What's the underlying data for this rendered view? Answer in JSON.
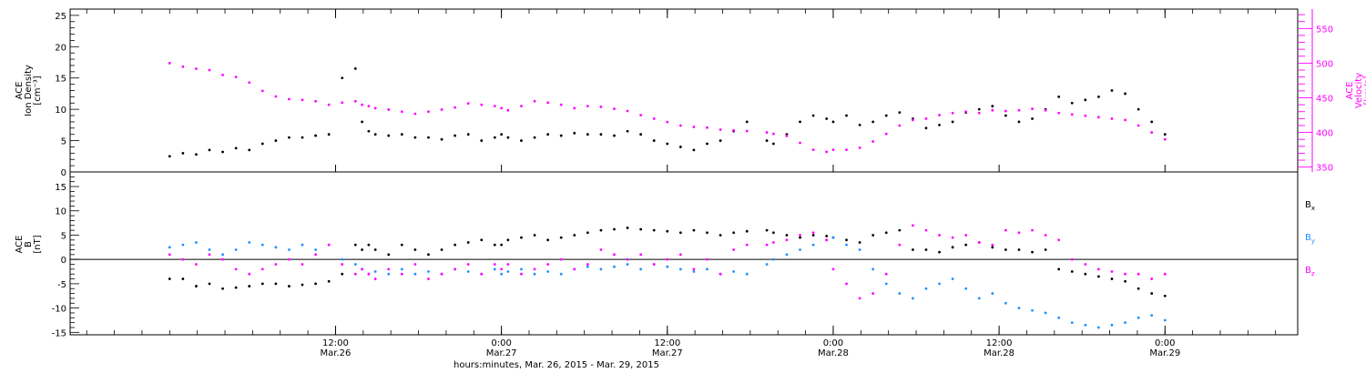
{
  "chart_data": [
    {
      "type": "scatter",
      "panel": "plasma",
      "ylabel_left": [
        "ACE",
        "Ion Density",
        "[cm⁻³]"
      ],
      "ylabel_right": [
        "ACE",
        "Velocity",
        "[km/s]"
      ],
      "left_axis": {
        "ylim": [
          0,
          26
        ],
        "ticks": [
          0,
          5,
          10,
          15,
          20,
          25
        ]
      },
      "right_axis": {
        "ylim": [
          343,
          578
        ],
        "ticks": [
          350,
          400,
          450,
          500,
          550
        ],
        "color": "#ff00ff"
      },
      "series": [
        {
          "name": "",
          "axis": "left",
          "color": "#000000",
          "x": [
            0.0,
            0.04,
            0.08,
            0.12,
            0.16,
            0.2,
            0.24,
            0.28,
            0.32,
            0.36,
            0.4,
            0.44,
            0.48,
            0.52,
            0.56,
            0.58,
            0.6,
            0.62,
            0.66,
            0.7,
            0.74,
            0.78,
            0.82,
            0.86,
            0.9,
            0.94,
            0.98,
            1.0,
            1.02,
            1.06,
            1.1,
            1.14,
            1.18,
            1.22,
            1.26,
            1.3,
            1.34,
            1.38,
            1.42,
            1.46,
            1.5,
            1.54,
            1.58,
            1.62,
            1.66,
            1.7,
            1.74,
            1.8,
            1.82,
            1.86,
            1.9,
            1.94,
            1.98,
            2.0,
            2.04,
            2.08,
            2.12,
            2.16,
            2.2,
            2.24,
            2.28,
            2.32,
            2.36,
            2.4,
            2.44,
            2.48,
            2.52,
            2.56,
            2.6,
            2.64,
            2.68,
            2.72,
            2.76,
            2.8,
            2.84,
            2.88,
            2.92,
            2.96,
            3.0
          ],
          "y": [
            2.5,
            3.0,
            2.8,
            3.5,
            3.2,
            3.8,
            3.5,
            4.5,
            5.0,
            5.5,
            5.5,
            5.8,
            6.0,
            15.0,
            16.5,
            8.0,
            6.5,
            6.0,
            5.8,
            6.0,
            5.5,
            5.5,
            5.2,
            5.8,
            6.0,
            5.0,
            5.5,
            6.0,
            5.5,
            5.0,
            5.5,
            6.0,
            5.8,
            6.2,
            6.0,
            6.0,
            5.8,
            6.5,
            6.0,
            5.0,
            4.5,
            4.0,
            3.5,
            4.5,
            5.0,
            6.5,
            8.0,
            5.0,
            4.5,
            6.0,
            8.0,
            9.0,
            8.5,
            8.0,
            9.0,
            7.5,
            8.0,
            9.0,
            9.5,
            8.5,
            7.0,
            7.5,
            8.0,
            9.5,
            10.0,
            10.5,
            9.0,
            8.0,
            8.5,
            10.0,
            12.0,
            11.0,
            11.5,
            12.0,
            13.0,
            12.5,
            10.0,
            8.0,
            6.0
          ]
        },
        {
          "name": "",
          "axis": "right",
          "color": "#ff00ff",
          "x": [
            0.0,
            0.04,
            0.08,
            0.12,
            0.16,
            0.2,
            0.24,
            0.28,
            0.32,
            0.36,
            0.4,
            0.44,
            0.48,
            0.52,
            0.56,
            0.58,
            0.6,
            0.62,
            0.66,
            0.7,
            0.74,
            0.78,
            0.82,
            0.86,
            0.9,
            0.94,
            0.98,
            1.0,
            1.02,
            1.06,
            1.1,
            1.14,
            1.18,
            1.22,
            1.26,
            1.3,
            1.34,
            1.38,
            1.42,
            1.46,
            1.5,
            1.54,
            1.58,
            1.62,
            1.66,
            1.7,
            1.74,
            1.8,
            1.82,
            1.86,
            1.9,
            1.94,
            1.98,
            2.0,
            2.04,
            2.08,
            2.12,
            2.16,
            2.2,
            2.24,
            2.28,
            2.32,
            2.36,
            2.4,
            2.44,
            2.48,
            2.52,
            2.56,
            2.6,
            2.64,
            2.68,
            2.72,
            2.76,
            2.8,
            2.84,
            2.88,
            2.92,
            2.96,
            3.0
          ],
          "y": [
            500,
            495,
            492,
            490,
            483,
            480,
            472,
            460,
            452,
            448,
            447,
            445,
            440,
            443,
            445,
            440,
            438,
            435,
            433,
            430,
            427,
            430,
            433,
            436,
            442,
            440,
            438,
            435,
            432,
            438,
            445,
            443,
            440,
            435,
            438,
            437,
            434,
            431,
            425,
            420,
            415,
            410,
            408,
            407,
            404,
            403,
            402,
            400,
            398,
            395,
            385,
            375,
            372,
            375,
            375,
            378,
            387,
            398,
            410,
            418,
            420,
            425,
            428,
            430,
            428,
            432,
            431,
            432,
            434,
            432,
            428,
            426,
            424,
            422,
            420,
            418,
            410,
            400,
            390
          ]
        }
      ]
    },
    {
      "type": "scatter",
      "panel": "magnetic_field",
      "ylabel_left": [
        "ACE",
        "B",
        "[nT]"
      ],
      "ylim": [
        -15.5,
        18
      ],
      "ticks": [
        -15,
        -10,
        -5,
        0,
        5,
        10,
        15
      ],
      "zero_line": true,
      "series": [
        {
          "name": "Bx",
          "color": "#000000",
          "x": [
            0.0,
            0.04,
            0.08,
            0.12,
            0.16,
            0.2,
            0.24,
            0.28,
            0.32,
            0.36,
            0.4,
            0.44,
            0.48,
            0.52,
            0.56,
            0.58,
            0.6,
            0.62,
            0.66,
            0.7,
            0.74,
            0.78,
            0.82,
            0.86,
            0.9,
            0.94,
            0.98,
            1.0,
            1.02,
            1.06,
            1.1,
            1.14,
            1.18,
            1.22,
            1.26,
            1.3,
            1.34,
            1.38,
            1.42,
            1.46,
            1.5,
            1.54,
            1.58,
            1.62,
            1.66,
            1.7,
            1.74,
            1.8,
            1.82,
            1.86,
            1.9,
            1.94,
            1.98,
            2.0,
            2.04,
            2.08,
            2.12,
            2.16,
            2.2,
            2.24,
            2.28,
            2.32,
            2.36,
            2.4,
            2.44,
            2.48,
            2.52,
            2.56,
            2.6,
            2.64,
            2.68,
            2.72,
            2.76,
            2.8,
            2.84,
            2.88,
            2.92,
            2.96,
            3.0
          ],
          "y": [
            -4,
            -4,
            -5.5,
            -5,
            -6,
            -5.8,
            -5.5,
            -5,
            -5,
            -5.5,
            -5.2,
            -5,
            -4.5,
            -3,
            3,
            2,
            3,
            2,
            1,
            3,
            2,
            1,
            2,
            3,
            3.5,
            4,
            3,
            3,
            4,
            4.5,
            5,
            4,
            4.5,
            5,
            5.5,
            6,
            6.2,
            6.5,
            6.2,
            6,
            5.8,
            5.5,
            6,
            5.5,
            5,
            5.5,
            5.8,
            6,
            5.5,
            5,
            4.5,
            5,
            4.8,
            4.5,
            4,
            3.5,
            5,
            5.5,
            6,
            2,
            2,
            1.5,
            2.5,
            3,
            3.5,
            2.5,
            2,
            2,
            1.5,
            2,
            -2,
            -2.5,
            -3,
            -3.5,
            -4,
            -4.5,
            -6,
            -7,
            -7.5
          ]
        },
        {
          "name": "By",
          "color": "#1e90ff",
          "x": [
            0.0,
            0.04,
            0.08,
            0.12,
            0.16,
            0.2,
            0.24,
            0.28,
            0.32,
            0.36,
            0.4,
            0.44,
            0.48,
            0.52,
            0.56,
            0.58,
            0.6,
            0.62,
            0.66,
            0.7,
            0.74,
            0.78,
            0.82,
            0.86,
            0.9,
            0.94,
            0.98,
            1.0,
            1.02,
            1.06,
            1.1,
            1.14,
            1.18,
            1.22,
            1.26,
            1.3,
            1.34,
            1.38,
            1.42,
            1.46,
            1.5,
            1.54,
            1.58,
            1.62,
            1.66,
            1.7,
            1.74,
            1.8,
            1.82,
            1.86,
            1.9,
            1.94,
            1.98,
            2.0,
            2.04,
            2.08,
            2.12,
            2.16,
            2.2,
            2.24,
            2.28,
            2.32,
            2.36,
            2.4,
            2.44,
            2.48,
            2.52,
            2.56,
            2.6,
            2.64,
            2.68,
            2.72,
            2.76,
            2.8,
            2.84,
            2.88,
            2.92,
            2.96,
            3.0
          ],
          "y": [
            2.5,
            3,
            3.5,
            2,
            1,
            2,
            3.5,
            3,
            2.5,
            2,
            3,
            2,
            3,
            0,
            -1,
            -2,
            -3,
            -2.5,
            -3,
            -2,
            -3,
            -2.5,
            -3,
            -2,
            -2.5,
            -3,
            -2,
            -3,
            -2.5,
            -2,
            -3,
            -2.5,
            -3,
            -2,
            -1.5,
            -2,
            -1.5,
            -1,
            -2,
            -1,
            -1.5,
            -2,
            -2.5,
            -2,
            -3,
            -2.5,
            -3,
            -1,
            0,
            1,
            2,
            3,
            4,
            4.5,
            3,
            2,
            -2,
            -5,
            -7,
            -8,
            -6,
            -5,
            -4,
            -6,
            -8,
            -7,
            -9,
            -10,
            -10.5,
            -11,
            -12,
            -13,
            -13.5,
            -14,
            -13.5,
            -13,
            -12,
            -11.5,
            -12.5
          ]
        },
        {
          "name": "Bz",
          "color": "#ff00ff",
          "x": [
            0.0,
            0.04,
            0.08,
            0.12,
            0.16,
            0.2,
            0.24,
            0.28,
            0.32,
            0.36,
            0.4,
            0.44,
            0.48,
            0.52,
            0.56,
            0.58,
            0.6,
            0.62,
            0.66,
            0.7,
            0.74,
            0.78,
            0.82,
            0.86,
            0.9,
            0.94,
            0.98,
            1.0,
            1.02,
            1.06,
            1.1,
            1.14,
            1.18,
            1.22,
            1.26,
            1.3,
            1.34,
            1.38,
            1.42,
            1.46,
            1.5,
            1.54,
            1.58,
            1.62,
            1.66,
            1.7,
            1.74,
            1.8,
            1.82,
            1.86,
            1.9,
            1.94,
            1.98,
            2.0,
            2.04,
            2.08,
            2.12,
            2.16,
            2.2,
            2.24,
            2.28,
            2.32,
            2.36,
            2.4,
            2.44,
            2.48,
            2.52,
            2.56,
            2.6,
            2.64,
            2.68,
            2.72,
            2.76,
            2.8,
            2.84,
            2.88,
            2.92,
            2.96,
            3.0
          ],
          "y": [
            1,
            0,
            -1,
            1,
            0,
            -2,
            -3,
            -2,
            -1,
            0,
            -1,
            1,
            3,
            -1,
            -3,
            -2,
            -3,
            -4,
            -2,
            -3,
            -1,
            -4,
            -3,
            -2,
            -1,
            -3,
            -1,
            -2,
            -1,
            -3,
            -2,
            -1,
            0,
            -2,
            -1,
            2,
            1,
            0,
            1,
            -1,
            0,
            1,
            -2,
            0,
            -3,
            2,
            3,
            3,
            3.5,
            4,
            5,
            5.5,
            4,
            -2,
            -5,
            -8,
            -7,
            -3,
            3,
            7,
            6,
            5,
            4.5,
            5,
            3.5,
            3,
            6,
            5.5,
            6,
            5,
            4,
            0,
            -1,
            -2,
            -2.5,
            -3,
            -3,
            -4,
            -3
          ]
        }
      ]
    }
  ],
  "x_axis": {
    "xlim": [
      -0.3,
      3.4
    ],
    "ticks": [
      {
        "x": 0.5,
        "time": "12:00",
        "date": "Mar.26"
      },
      {
        "x": 1.0,
        "time": "0:00",
        "date": "Mar.27"
      },
      {
        "x": 1.5,
        "time": "12:00",
        "date": "Mar.27"
      },
      {
        "x": 2.0,
        "time": "0:00",
        "date": "Mar.28"
      },
      {
        "x": 2.5,
        "time": "12:00",
        "date": "Mar.28"
      },
      {
        "x": 3.0,
        "time": "0:00",
        "date": "Mar.29"
      }
    ],
    "xlabel": "hours:minutes, Mar. 26, 2015 - Mar. 29, 2015"
  },
  "legend": {
    "items": [
      {
        "label": "B",
        "sub": "x",
        "color": "#000000"
      },
      {
        "label": "B",
        "sub": "y",
        "color": "#1e90ff"
      },
      {
        "label": "B",
        "sub": "z",
        "color": "#ff00ff"
      }
    ]
  }
}
